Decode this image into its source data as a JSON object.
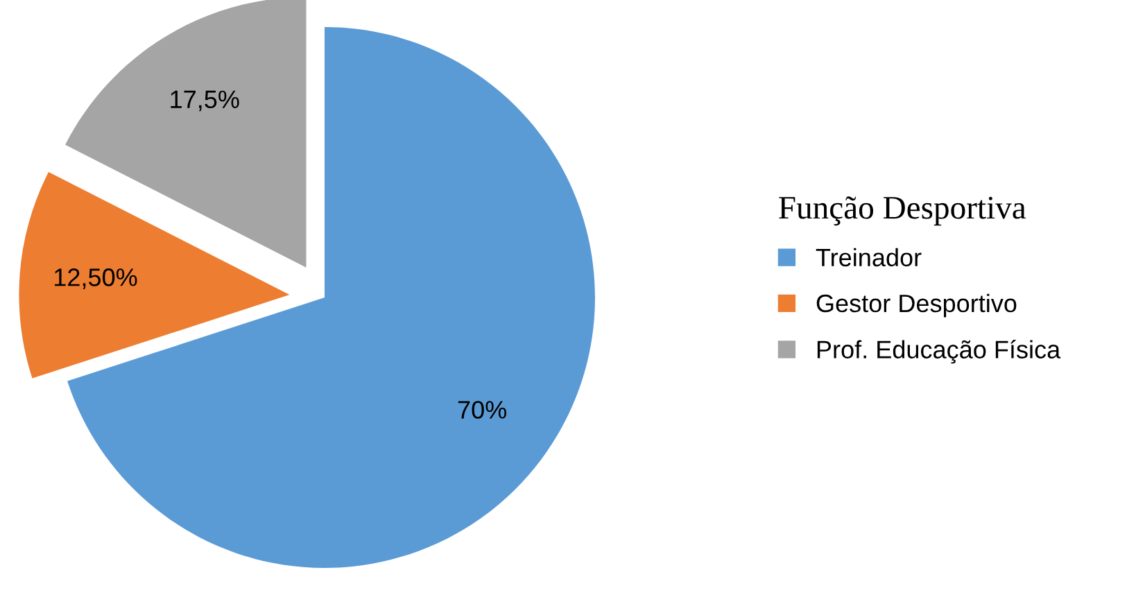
{
  "chart_data": {
    "type": "pie",
    "legend_title": "Função Desportiva",
    "categories": [
      "Treinador",
      "Gestor Desportivo",
      "Prof. Educação Física"
    ],
    "values": [
      70,
      12.5,
      17.5
    ],
    "colors": [
      "#5b9bd5",
      "#ed7d31",
      "#a5a5a5"
    ],
    "value_labels": [
      "70%",
      "12,50%",
      "17,5%"
    ],
    "legend": "right"
  }
}
